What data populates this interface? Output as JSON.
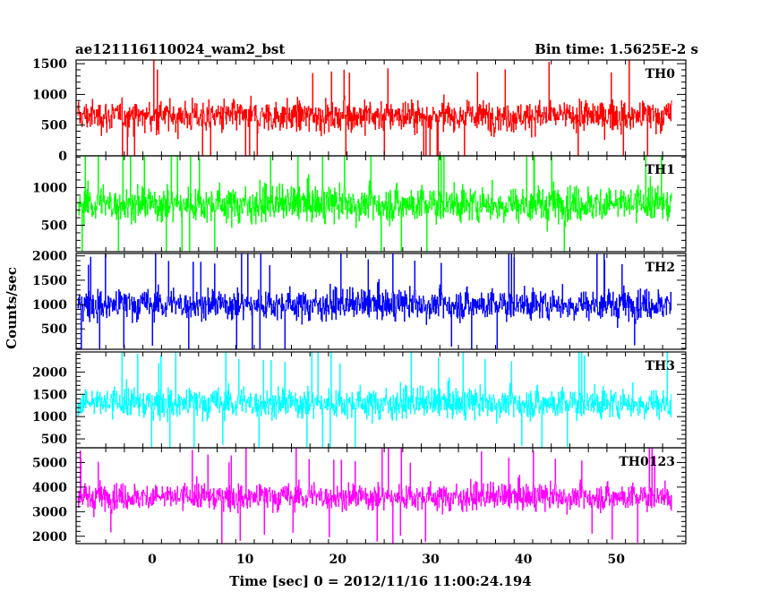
{
  "header": {
    "title_left": "ae121116110024_wam2_bst",
    "title_right": "Bin time: 1.5625E-2 s"
  },
  "chart_data": {
    "type": "line",
    "xlabel": "Time [sec] 0 = 2012/11/16 11:00:24.194",
    "ylabel": "Counts/sec",
    "xlim": [
      -8.2,
      57.5
    ],
    "x_data_range": [
      -8.0,
      56.0
    ],
    "x_tick_labels": [
      0,
      10,
      20,
      30,
      40,
      50
    ],
    "bin_time_s": 0.015625,
    "panels": [
      {
        "name": "TH0",
        "color": "#ff0000",
        "ylim": [
          0,
          1560
        ],
        "yticks": [
          0,
          500,
          1000,
          1500
        ],
        "mean": 650,
        "typical_range": [
          50,
          1200
        ],
        "peak": 1560
      },
      {
        "name": "TH1",
        "color": "#00ff00",
        "ylim": [
          150,
          1420
        ],
        "yticks": [
          500,
          1000
        ],
        "mean": 780,
        "typical_range": [
          200,
          1300
        ],
        "peak": 1420
      },
      {
        "name": "TH2",
        "color": "#0000ff",
        "ylim": [
          80,
          2050
        ],
        "yticks": [
          500,
          1000,
          1500,
          2000
        ],
        "mean": 1000,
        "typical_range": [
          300,
          1750
        ],
        "peak": 2050
      },
      {
        "name": "TH3",
        "color": "#00ffff",
        "ylim": [
          300,
          2450
        ],
        "yticks": [
          500,
          1000,
          1500,
          2000
        ],
        "mean": 1300,
        "typical_range": [
          550,
          2150
        ],
        "peak": 2450
      },
      {
        "name": "TH0123",
        "color": "#ff00ff",
        "ylim": [
          1700,
          5600
        ],
        "yticks": [
          2000,
          3000,
          4000,
          5000
        ],
        "mean": 3600,
        "typical_range": [
          2300,
          4800
        ],
        "peak": 5600
      }
    ]
  }
}
